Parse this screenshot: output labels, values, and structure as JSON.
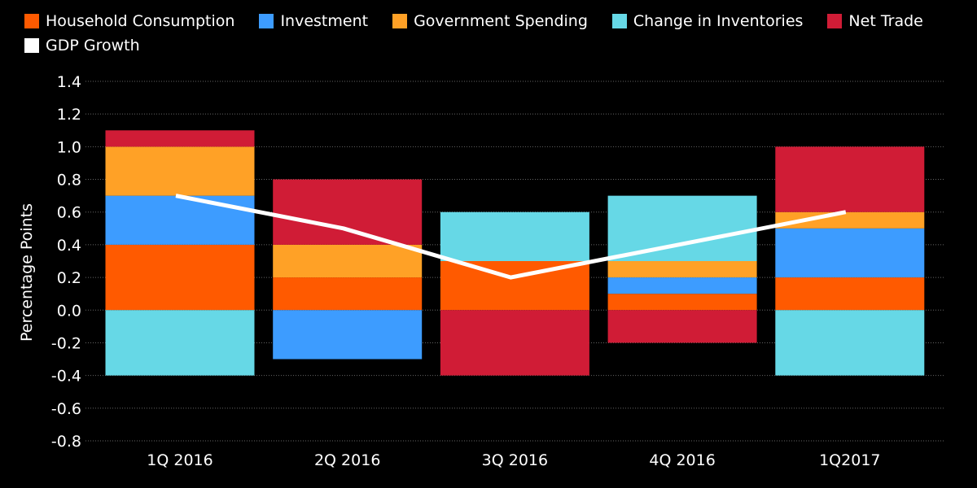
{
  "chart_data": {
    "type": "bar",
    "stacked": true,
    "title": "",
    "xlabel": "",
    "ylabel": "Percentage Points",
    "ylim": [
      -0.8,
      1.4
    ],
    "yticks": [
      "1.4",
      "1.2",
      "1.0",
      "0.8",
      "0.6",
      "0.4",
      "0.2",
      "0.0",
      "-0.2",
      "-0.4",
      "-0.6",
      "-0.8"
    ],
    "grid": true,
    "legend_position": "top-left",
    "categories": [
      "1Q 2016",
      "2Q 2016",
      "3Q 2016",
      "4Q 2016",
      "1Q2017"
    ],
    "series": [
      {
        "name": "Household Consumption",
        "color": "#ff5a00",
        "values": [
          0.4,
          0.2,
          0.3,
          0.1,
          0.2
        ]
      },
      {
        "name": "Investment",
        "color": "#3d9cff",
        "values": [
          0.3,
          -0.3,
          0,
          0.1,
          0.3
        ]
      },
      {
        "name": "Government Spending",
        "color": "#ffa126",
        "values": [
          0.3,
          0.2,
          0,
          0.1,
          0.1
        ]
      },
      {
        "name": "Change in Inventories",
        "color": "#66d8e6",
        "values": [
          -0.4,
          0,
          0.3,
          0.4,
          -0.4
        ]
      },
      {
        "name": "Net Trade",
        "color": "#d01c36",
        "values": [
          0.1,
          0.4,
          -0.4,
          -0.2,
          0.4
        ]
      }
    ],
    "line": {
      "name": "GDP Growth",
      "color": "#ffffff",
      "values": [
        0.7,
        0.5,
        0.2,
        0.4,
        0.6
      ]
    }
  }
}
